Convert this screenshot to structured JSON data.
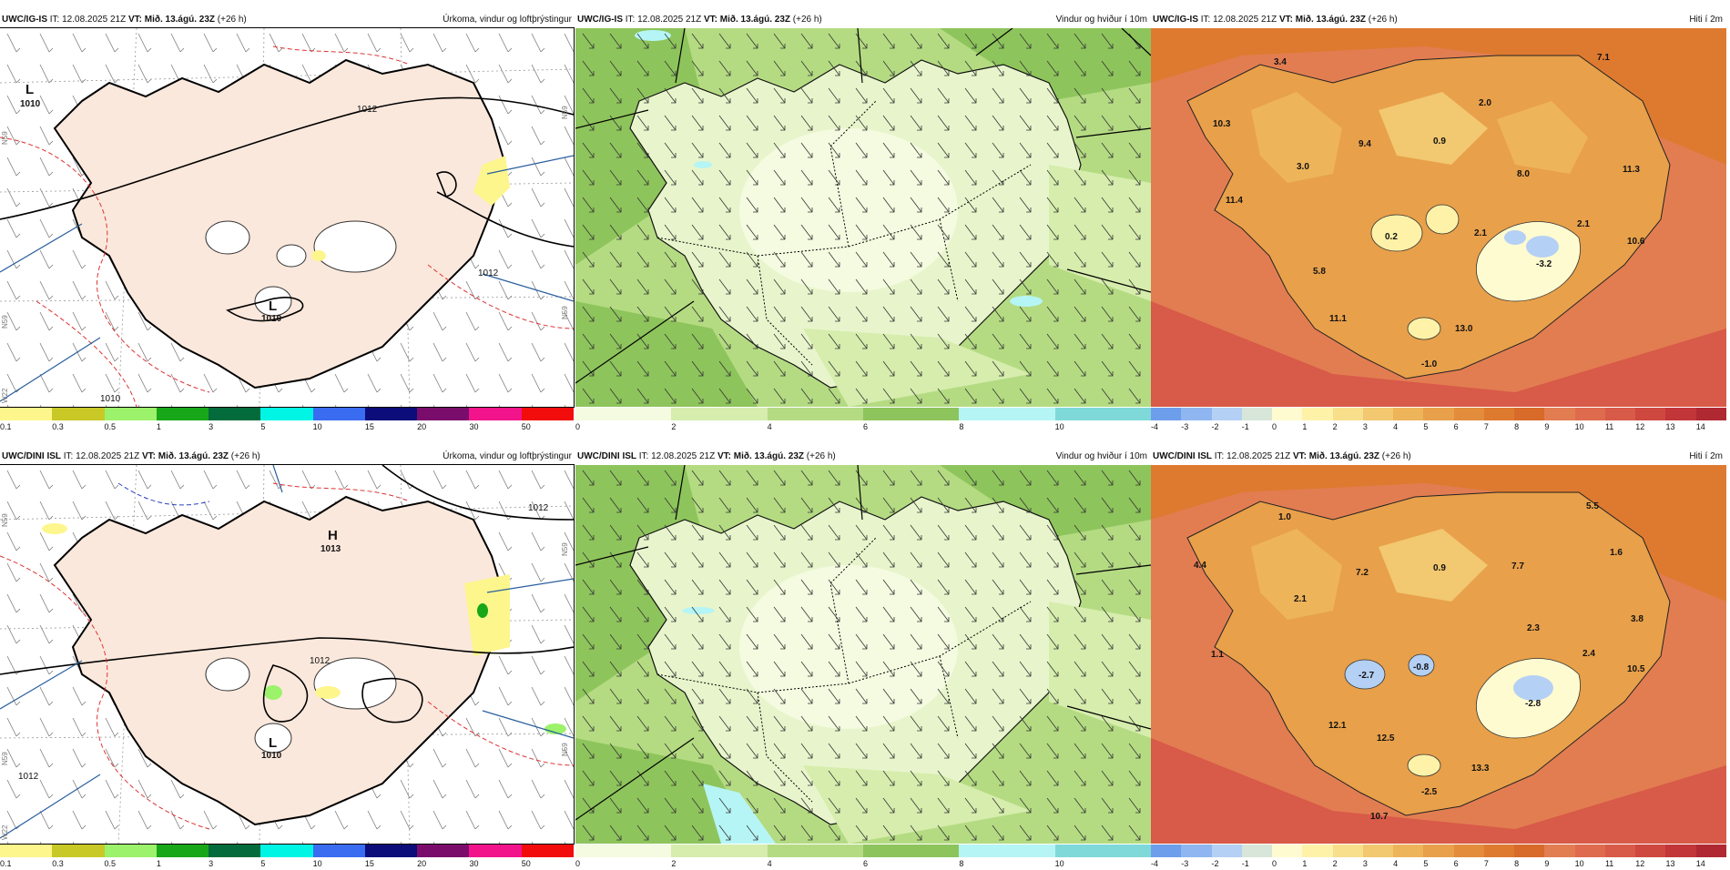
{
  "header": {
    "it_label": "IT:",
    "it_value": "12.08.2025 21Z",
    "vt_label": "VT:",
    "vt_value": "Mið. 13.ágú. 23Z",
    "lead": "(+26 h)"
  },
  "rows": [
    {
      "model": "UWC/IG-IS"
    },
    {
      "model": "UWC/DINI ISL"
    }
  ],
  "panel_titles": {
    "precip": "Úrkoma, vindur og loftþrýstingur",
    "wind": "Vindur og hviður í 10m",
    "temp": "Hiti í 2m"
  },
  "colorbars": {
    "precip": {
      "labels": [
        "0.1",
        "0.3",
        "0.5",
        "1",
        "3",
        "5",
        "10",
        "15",
        "20",
        "30",
        "50"
      ],
      "colors": [
        "#fdf68c",
        "#c8c827",
        "#9cf26a",
        "#18a718",
        "#046c3c",
        "#00f5e5",
        "#3a6cf2",
        "#0c0c7a",
        "#7a0c6c",
        "#f2148a",
        "#f20c0c"
      ]
    },
    "wind": {
      "labels": [
        "0",
        "2",
        "4",
        "6",
        "8",
        "10"
      ],
      "colors": [
        "#f4fbe0",
        "#d6edad",
        "#b4db82",
        "#8ec45c",
        "#b6f5f5",
        "#7fd9d9"
      ]
    },
    "temp": {
      "labels": [
        "-4",
        "-3",
        "-2",
        "-1",
        "0",
        "1",
        "2",
        "3",
        "4",
        "5",
        "6",
        "7",
        "8",
        "9",
        "10",
        "11",
        "12",
        "13",
        "14"
      ],
      "colors": [
        "#6d9eeb",
        "#8fb6f0",
        "#b4d0f5",
        "#d7e6d8",
        "#fffbd0",
        "#fdf2a8",
        "#f8df8c",
        "#f2c870",
        "#eeb45a",
        "#e8a04a",
        "#e28c3c",
        "#de7a30",
        "#d86a2a",
        "#e27d52",
        "#de6b4e",
        "#d85a48",
        "#ce4840",
        "#c2363a",
        "#b02832"
      ]
    }
  },
  "precip_maps": [
    {
      "pressure_labels": [
        "1012",
        "1012",
        "1010",
        "1010",
        "1010"
      ],
      "centers": [
        "L",
        "L"
      ],
      "grid_labels": [
        "N59",
        "N59",
        "N59",
        "N59",
        "W22"
      ]
    },
    {
      "pressure_labels": [
        "1012",
        "1012",
        "1012",
        "1013",
        "1010"
      ],
      "centers": [
        "H",
        "L"
      ],
      "grid_labels": [
        "N59",
        "N59",
        "N59",
        "N59",
        "W22"
      ]
    }
  ],
  "temp_maps": [
    {
      "values": [
        "3.4",
        "7.1",
        "10.3",
        "2.0",
        "9.4",
        "0.9",
        "3.0",
        "8.0",
        "11.3",
        "11.4",
        "2.1",
        "0.2",
        "2.1",
        "-3.2",
        "10.6",
        "5.8",
        "11.1",
        "13.0",
        "-1.0"
      ]
    },
    {
      "values": [
        "1.0",
        "5.5",
        "4.4",
        "1.6",
        "7.2",
        "0.9",
        "7.7",
        "2.1",
        "3.8",
        "2.3",
        "1.1",
        "-2.7",
        "-0.8",
        "2.4",
        "10.5",
        "-2.8",
        "12.1",
        "12.5",
        "13.3",
        "-2.5",
        "10.7"
      ]
    }
  ]
}
